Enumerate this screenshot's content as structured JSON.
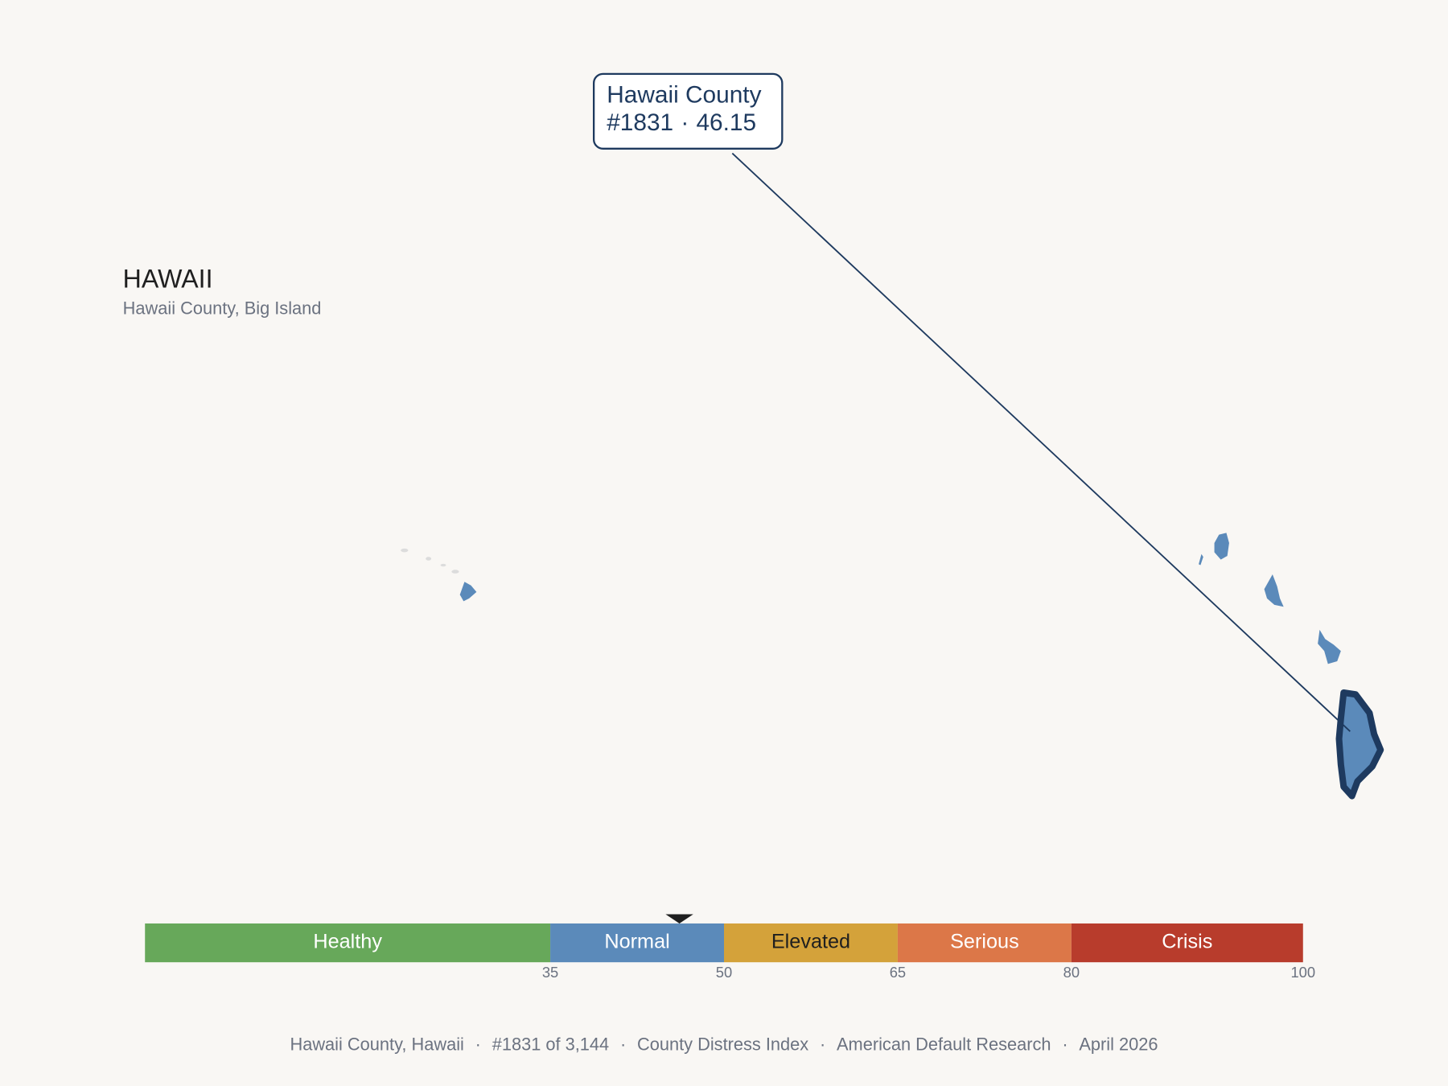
{
  "title": "HAWAII",
  "subtitle": "Hawaii County, Big Island",
  "tooltip": {
    "name": "Hawaii County",
    "rank": "#1831",
    "separator": "·",
    "score": 46.15
  },
  "scale": {
    "xlim": [
      0,
      100
    ],
    "ticks": [
      35,
      50,
      65,
      80,
      100
    ],
    "bands": [
      {
        "label": "Healthy",
        "color": "#67a85a",
        "text_color": "#ffffff"
      },
      {
        "label": "Normal",
        "color": "#5b8aba",
        "text_color": "#ffffff"
      },
      {
        "label": "Elevated",
        "color": "#d4a23a",
        "text_color": "#1f1f1f"
      },
      {
        "label": "Serious",
        "color": "#dc7748",
        "text_color": "#ffffff"
      },
      {
        "label": "Crisis",
        "color": "#b83c2c",
        "text_color": "#ffffff"
      }
    ]
  },
  "footer": {
    "separator": "·",
    "parts": [
      "Hawaii County, Hawaii",
      "#1831 of 3,144",
      "County Distress Index",
      "American Default Research",
      "April 2026"
    ]
  }
}
